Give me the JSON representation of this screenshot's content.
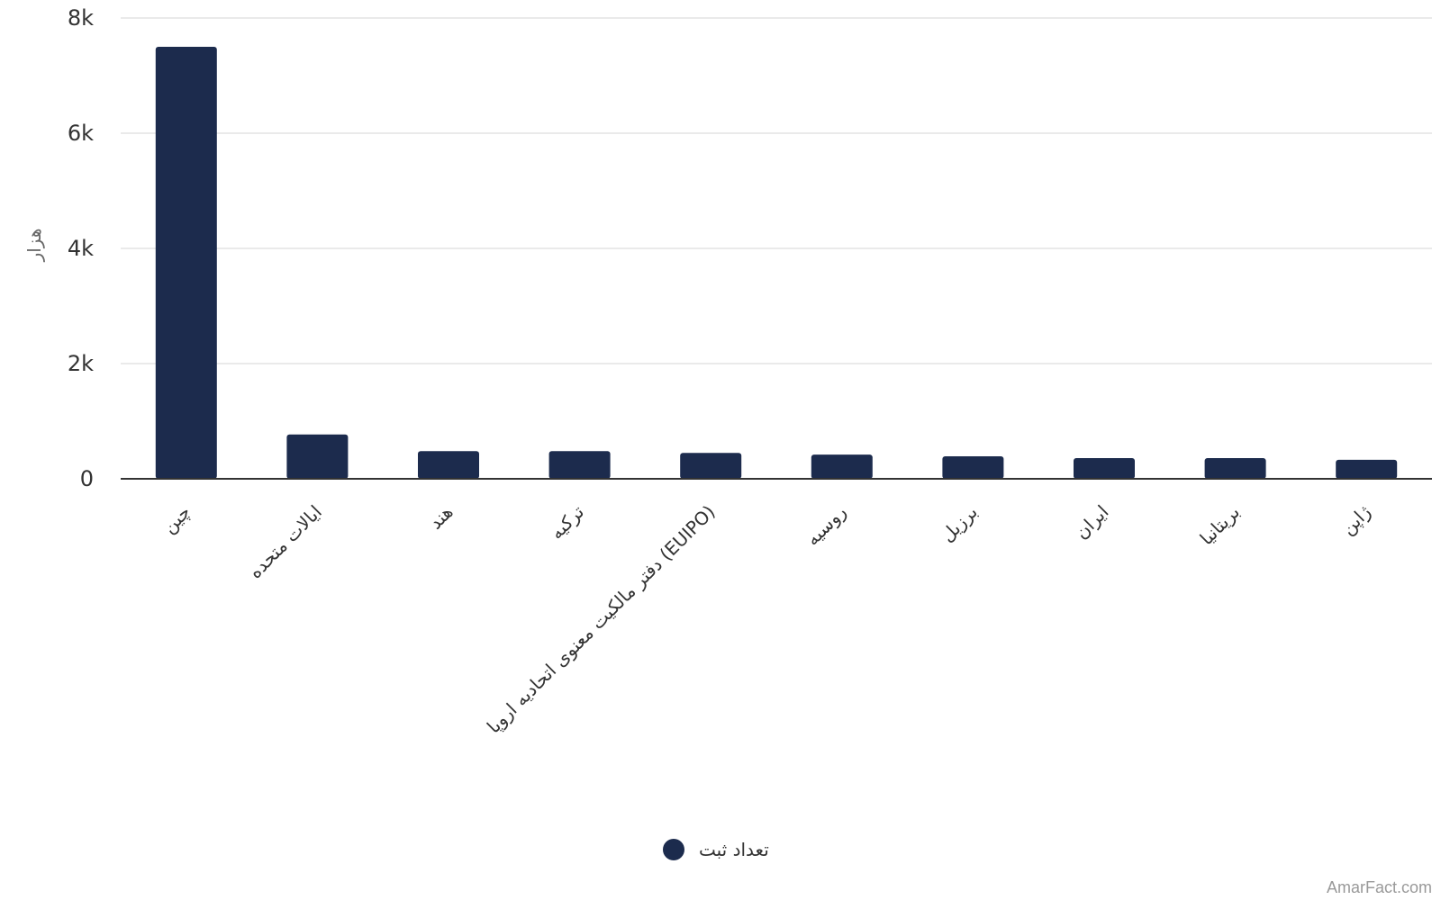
{
  "chart_data": {
    "type": "bar",
    "title": "",
    "xlabel": "",
    "ylabel": "هزار",
    "ylim": [
      0,
      8000
    ],
    "yticks": [
      0,
      2000,
      4000,
      6000,
      8000
    ],
    "ytick_labels": [
      "0",
      "2k",
      "4k",
      "6k",
      "8k"
    ],
    "grid": true,
    "legend_position": "bottom-center",
    "categories": [
      "چین",
      "ایالات متحده",
      "هند",
      "ترکیه",
      "دفتر مالکیت معنوی اتحادیه اروپا (EUIPO)",
      "روسیه",
      "برزیل",
      "ایران",
      "بریتانیا",
      "ژاپن"
    ],
    "series": [
      {
        "name": "تعداد ثبت",
        "color": "#1c2b4d",
        "values": [
          7500,
          770,
          480,
          480,
          450,
          420,
          390,
          360,
          360,
          330
        ]
      }
    ]
  },
  "watermark": "AmarFact.com"
}
